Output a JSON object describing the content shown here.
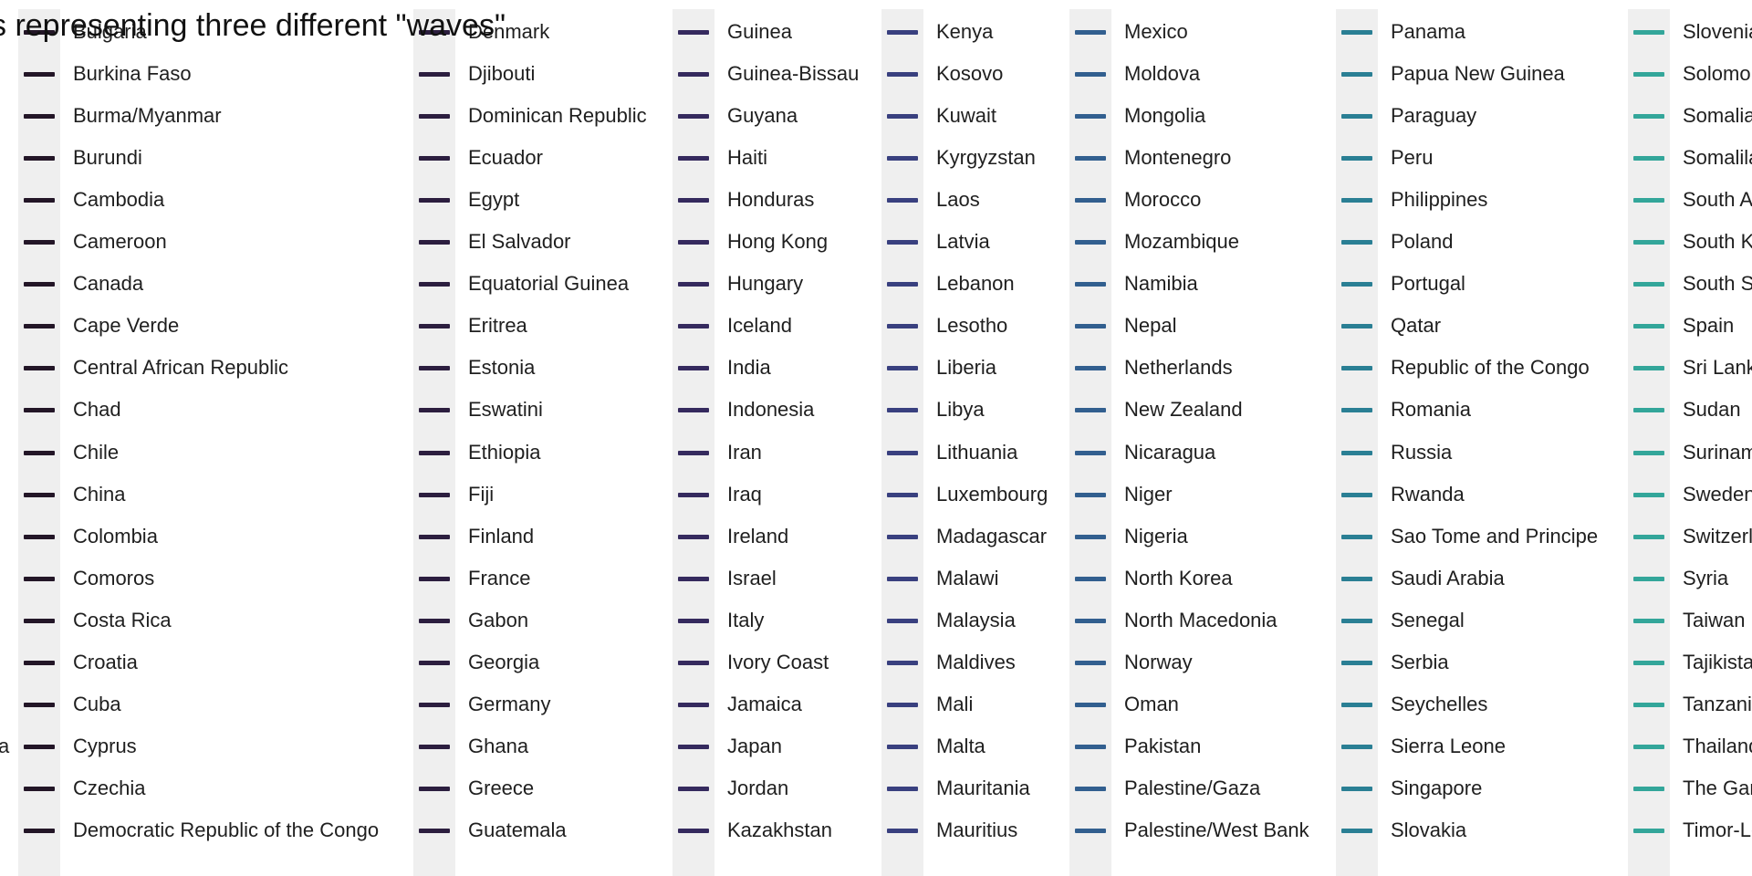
{
  "chart_data": {
    "type": "line",
    "title": "s representing three different \"waves\"",
    "edge_fragment": "a",
    "legend": {
      "columns": [
        {
          "color": "#231627",
          "labels": [
            "Bulgaria",
            "Burkina Faso",
            "Burma/Myanmar",
            "Burundi",
            "Cambodia",
            "Cameroon",
            "Canada",
            "Cape Verde",
            "Central African Republic",
            "Chad",
            "Chile",
            "China",
            "Colombia",
            "Comoros",
            "Costa Rica",
            "Croatia",
            "Cuba",
            "Cyprus",
            "Czechia",
            "Democratic Republic of the Congo"
          ]
        },
        {
          "color": "#2c1e3f",
          "labels": [
            "Denmark",
            "Djibouti",
            "Dominican Republic",
            "Ecuador",
            "Egypt",
            "El Salvador",
            "Equatorial Guinea",
            "Eritrea",
            "Estonia",
            "Eswatini",
            "Ethiopia",
            "Fiji",
            "Finland",
            "France",
            "Gabon",
            "Georgia",
            "Germany",
            "Ghana",
            "Greece",
            "Guatemala"
          ]
        },
        {
          "color": "#352a5e",
          "labels": [
            "Guinea",
            "Guinea-Bissau",
            "Guyana",
            "Haiti",
            "Honduras",
            "Hong Kong",
            "Hungary",
            "Iceland",
            "India",
            "Indonesia",
            "Iran",
            "Iraq",
            "Ireland",
            "Israel",
            "Italy",
            "Ivory Coast",
            "Jamaica",
            "Japan",
            "Jordan",
            "Kazakhstan"
          ]
        },
        {
          "color": "#39407f",
          "labels": [
            "Kenya",
            "Kosovo",
            "Kuwait",
            "Kyrgyzstan",
            "Laos",
            "Latvia",
            "Lebanon",
            "Lesotho",
            "Liberia",
            "Libya",
            "Lithuania",
            "Luxembourg",
            "Madagascar",
            "Malawi",
            "Malaysia",
            "Maldives",
            "Mali",
            "Malta",
            "Mauritania",
            "Mauritius"
          ]
        },
        {
          "color": "#325f8f",
          "labels": [
            "Mexico",
            "Moldova",
            "Mongolia",
            "Montenegro",
            "Morocco",
            "Mozambique",
            "Namibia",
            "Nepal",
            "Netherlands",
            "New Zealand",
            "Nicaragua",
            "Niger",
            "Nigeria",
            "North Korea",
            "North Macedonia",
            "Norway",
            "Oman",
            "Pakistan",
            "Palestine/Gaza",
            "Palestine/West Bank"
          ]
        },
        {
          "color": "#2a7f94",
          "labels": [
            "Panama",
            "Papua New Guinea",
            "Paraguay",
            "Peru",
            "Philippines",
            "Poland",
            "Portugal",
            "Qatar",
            "Republic of the Congo",
            "Romania",
            "Russia",
            "Rwanda",
            "Sao Tome and Principe",
            "Saudi Arabia",
            "Senegal",
            "Serbia",
            "Seychelles",
            "Sierra Leone",
            "Singapore",
            "Slovakia"
          ]
        },
        {
          "color": "#33a69a",
          "labels": [
            "Slovenia",
            "Solomon Islands",
            "Somalia",
            "Somaliland",
            "South Africa",
            "South Korea",
            "South Sudan",
            "Spain",
            "Sri Lanka",
            "Sudan",
            "Suriname",
            "Sweden",
            "Switzerland",
            "Syria",
            "Taiwan",
            "Tajikistan",
            "Tanzania",
            "Thailand",
            "The Gambia",
            "Timor-Leste"
          ]
        }
      ]
    }
  }
}
